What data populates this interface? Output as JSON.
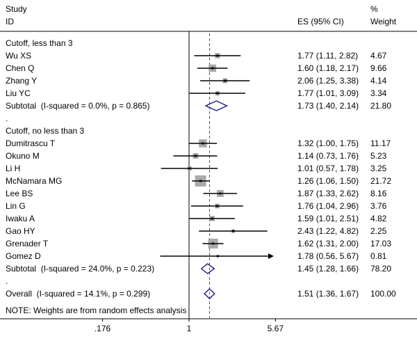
{
  "header": {
    "study_line1": "Study",
    "study_line2": "ID",
    "es_header": "ES (95% CI)",
    "pct_line1": "%",
    "pct_line2": "Weight"
  },
  "note": "NOTE: Weights are from random effects analysis",
  "colors": {
    "axis_line": "#000000",
    "ci_line": "#000000",
    "marker": "#000000",
    "box_fill": "#a9a9a9",
    "diamond_stroke": "#1a1a80",
    "dashed_line": "#90353B"
  },
  "chart_data": {
    "type": "forest",
    "effect_measure": "ES",
    "model_note": "NOTE: Weights are from random effects analysis",
    "axis": {
      "scale": "log",
      "null_value": 1,
      "ticks": [
        {
          "label": ".176",
          "value": 0.176
        },
        {
          "label": "1",
          "value": 1
        },
        {
          "label": "5.67",
          "value": 5.67
        }
      ]
    },
    "groups": [
      {
        "label": "Cutoff, less than 3",
        "studies": [
          {
            "id": "Wu XS",
            "es": 1.77,
            "lo": 1.11,
            "hi": 2.82,
            "es_text": "1.77 (1.11, 2.82)",
            "weight": "4.67"
          },
          {
            "id": "Chen Q",
            "es": 1.6,
            "lo": 1.18,
            "hi": 2.17,
            "es_text": "1.60 (1.18, 2.17)",
            "weight": "9.66"
          },
          {
            "id": "Zhang Y",
            "es": 2.06,
            "lo": 1.25,
            "hi": 3.38,
            "es_text": "2.06 (1.25, 3.38)",
            "weight": "4.14"
          },
          {
            "id": "Liu YC",
            "es": 1.77,
            "lo": 1.01,
            "hi": 3.09,
            "es_text": "1.77 (1.01, 3.09)",
            "weight": "3.34"
          }
        ],
        "subtotal": {
          "label": "Subtotal  (I-squared = 0.0%, p = 0.865)",
          "es": 1.73,
          "lo": 1.4,
          "hi": 2.14,
          "es_text": "1.73 (1.40, 2.14)",
          "weight": "21.80"
        }
      },
      {
        "label": "Cutoff, no less than 3",
        "studies": [
          {
            "id": "Dumitrascu T",
            "es": 1.32,
            "lo": 1.0,
            "hi": 1.75,
            "es_text": "1.32 (1.00, 1.75)",
            "weight": "11.17"
          },
          {
            "id": "Okuno M",
            "es": 1.14,
            "lo": 0.73,
            "hi": 1.76,
            "es_text": "1.14 (0.73, 1.76)",
            "weight": "5.23"
          },
          {
            "id": "Li H",
            "es": 1.01,
            "lo": 0.57,
            "hi": 1.78,
            "es_text": "1.01 (0.57, 1.78)",
            "weight": "3.25"
          },
          {
            "id": "McNamara MG",
            "es": 1.26,
            "lo": 1.06,
            "hi": 1.5,
            "es_text": "1.26 (1.06, 1.50)",
            "weight": "21.72"
          },
          {
            "id": "Lee BS",
            "es": 1.87,
            "lo": 1.33,
            "hi": 2.62,
            "es_text": "1.87 (1.33, 2.62)",
            "weight": "8.16"
          },
          {
            "id": "Lin G",
            "es": 1.76,
            "lo": 1.04,
            "hi": 2.96,
            "es_text": "1.76 (1.04, 2.96)",
            "weight": "3.76"
          },
          {
            "id": "Iwaku A",
            "es": 1.59,
            "lo": 1.01,
            "hi": 2.51,
            "es_text": "1.59 (1.01, 2.51)",
            "weight": "4.82"
          },
          {
            "id": "Gao HY",
            "es": 2.43,
            "lo": 1.22,
            "hi": 4.82,
            "es_text": "2.43 (1.22, 4.82)",
            "weight": "2.25"
          },
          {
            "id": "Grenader T",
            "es": 1.62,
            "lo": 1.31,
            "hi": 2.0,
            "es_text": "1.62 (1.31, 2.00)",
            "weight": "17.03"
          },
          {
            "id": "Gomez D",
            "es": 1.78,
            "lo": 0.56,
            "hi": 5.67,
            "clip_hi": true,
            "es_text": "1.78 (0.56, 5.67)",
            "weight": "0.81"
          }
        ],
        "subtotal": {
          "label": "Subtotal  (I-squared = 24.0%, p = 0.223)",
          "es": 1.45,
          "lo": 1.28,
          "hi": 1.66,
          "es_text": "1.45 (1.28, 1.66)",
          "weight": "78.20"
        }
      }
    ],
    "overall": {
      "label": "Overall  (I-squared = 14.1%, p = 0.299)",
      "es": 1.51,
      "lo": 1.36,
      "hi": 1.67,
      "es_text": "1.51 (1.36, 1.67)",
      "weight": "100.00"
    }
  }
}
